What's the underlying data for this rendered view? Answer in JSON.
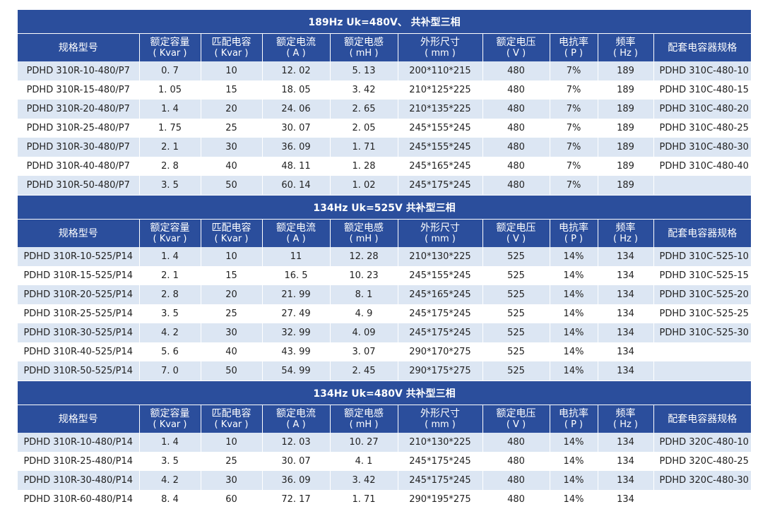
{
  "columns": [
    {
      "label": "规格型号",
      "unit": ""
    },
    {
      "label": "额定容量",
      "unit": "( Kvar )"
    },
    {
      "label": "匹配电容",
      "unit": "( Kvar )"
    },
    {
      "label": "额定电流",
      "unit": "( A )"
    },
    {
      "label": "额定电感",
      "unit": "( mH )"
    },
    {
      "label": "外形尺寸",
      "unit": "( mm )"
    },
    {
      "label": "额定电压",
      "unit": "( V )"
    },
    {
      "label": "电抗率",
      "unit": "( P )"
    },
    {
      "label": "频率",
      "unit": "( Hz )"
    },
    {
      "label": "配套电容器规格",
      "unit": ""
    }
  ],
  "sections": [
    {
      "title": "189Hz  Uk=480V、 共补型三相",
      "rows": [
        [
          "PDHD 310R-10-480/P7",
          "0. 7",
          "10",
          "12. 02",
          "5. 13",
          "200*110*215",
          "480",
          "7%",
          "189",
          "PDHD 310C-480-10"
        ],
        [
          "PDHD 310R-15-480/P7",
          "1. 05",
          "15",
          "18. 05",
          "3. 42",
          "210*125*225",
          "480",
          "7%",
          "189",
          "PDHD 310C-480-15"
        ],
        [
          "PDHD 310R-20-480/P7",
          "1. 4",
          "20",
          "24. 06",
          "2. 65",
          "210*135*225",
          "480",
          "7%",
          "189",
          "PDHD 310C-480-20"
        ],
        [
          "PDHD 310R-25-480/P7",
          "1. 75",
          "25",
          "30. 07",
          "2. 05",
          "245*155*245",
          "480",
          "7%",
          "189",
          "PDHD 310C-480-25"
        ],
        [
          "PDHD 310R-30-480/P7",
          "2. 1",
          "30",
          "36. 09",
          "1. 71",
          "245*155*245",
          "480",
          "7%",
          "189",
          "PDHD 310C-480-30"
        ],
        [
          "PDHD 310R-40-480/P7",
          "2. 8",
          "40",
          "48. 11",
          "1. 28",
          "245*165*245",
          "480",
          "7%",
          "189",
          "PDHD 310C-480-40"
        ],
        [
          "PDHD 310R-50-480/P7",
          "3. 5",
          "50",
          "60. 14",
          "1. 02",
          "245*175*245",
          "480",
          "7%",
          "189",
          ""
        ]
      ]
    },
    {
      "title": "134Hz  Uk=525V  共补型三相",
      "rows": [
        [
          "PDHD 310R-10-525/P14",
          "1. 4",
          "10",
          "11",
          "12. 28",
          "210*130*225",
          "525",
          "14%",
          "134",
          "PDHD 310C-525-10"
        ],
        [
          "PDHD 310R-15-525/P14",
          "2. 1",
          "15",
          "16. 5",
          "10. 23",
          "245*155*245",
          "525",
          "14%",
          "134",
          "PDHD 310C-525-15"
        ],
        [
          "PDHD 310R-20-525/P14",
          "2. 8",
          "20",
          "21. 99",
          "8. 1",
          "245*165*245",
          "525",
          "14%",
          "134",
          "PDHD 310C-525-20"
        ],
        [
          "PDHD 310R-25-525/P14",
          "3. 5",
          "25",
          "27. 49",
          "4. 9",
          "245*175*245",
          "525",
          "14%",
          "134",
          "PDHD 310C-525-25"
        ],
        [
          "PDHD 310R-30-525/P14",
          "4. 2",
          "30",
          "32. 99",
          "4. 09",
          "245*175*245",
          "525",
          "14%",
          "134",
          "PDHD 310C-525-30"
        ],
        [
          "PDHD 310R-40-525/P14",
          "5. 6",
          "40",
          "43. 99",
          "3. 07",
          "290*170*275",
          "525",
          "14%",
          "134",
          ""
        ],
        [
          "PDHD 310R-50-525/P14",
          "7. 0",
          "50",
          "54. 99",
          "2. 45",
          "290*175*275",
          "525",
          "14%",
          "134",
          ""
        ]
      ]
    },
    {
      "title": "134Hz  Uk=480V  共补型三相",
      "rows": [
        [
          "PDHD 310R-10-480/P14",
          "1. 4",
          "10",
          "12. 03",
          "10. 27",
          "210*130*225",
          "480",
          "14%",
          "134",
          "PDHD 320C-480-10"
        ],
        [
          "PDHD 310R-25-480/P14",
          "3. 5",
          "25",
          "30. 07",
          "4. 1",
          "245*175*245",
          "480",
          "14%",
          "134",
          "PDHD 320C-480-25"
        ],
        [
          "PDHD 310R-30-480/P14",
          "4. 2",
          "30",
          "36. 09",
          "3. 42",
          "245*175*245",
          "480",
          "14%",
          "134",
          "PDHD 320C-480-30"
        ],
        [
          "PDHD 310R-60-480/P14",
          "8. 4",
          "60",
          "72. 17",
          "1. 71",
          "290*195*275",
          "480",
          "14%",
          "134",
          ""
        ]
      ]
    }
  ]
}
